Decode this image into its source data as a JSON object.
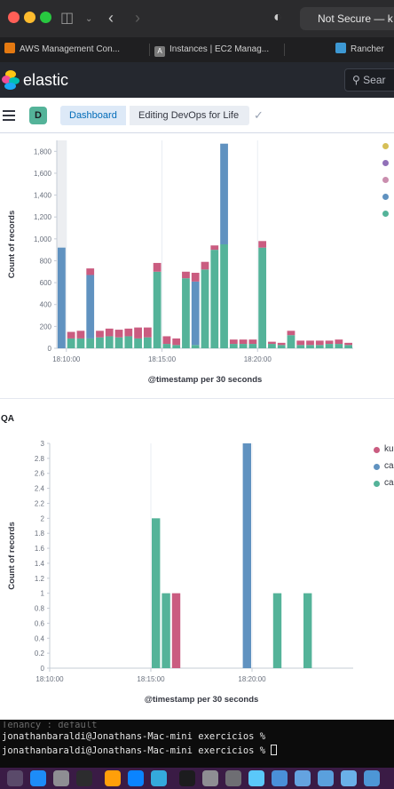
{
  "browser": {
    "url_text": "Not Secure — k",
    "tabs": [
      {
        "label": "AWS Management Con...",
        "icon": "aws-icon",
        "color": "#e47911"
      },
      {
        "label": "Instances | EC2 Manag...",
        "icon": "a-icon",
        "color": "#7a7a7a"
      },
      {
        "label": "Rancher",
        "icon": "rancher-icon",
        "color": "#3d98d3"
      }
    ]
  },
  "header": {
    "brand": "elastic",
    "search_placeholder": "Sear"
  },
  "breadcrumbs": {
    "space_initial": "D",
    "items": [
      "Dashboard",
      "Editing DevOps for Life"
    ]
  },
  "panels": [
    {
      "title": "",
      "chart_data": {
        "type": "bar",
        "stacked": true,
        "xlabel": "@timestamp per 30 seconds",
        "ylabel": "Count of records",
        "ylim": [
          0,
          1900
        ],
        "y_ticks": [
          "0",
          "200",
          "400",
          "600",
          "800",
          "1,000",
          "1,200",
          "1,400",
          "1,600",
          "1,800"
        ],
        "x_ticks": [
          "18:10:00",
          "18:15:00",
          "18:20:00"
        ],
        "legend_colors": [
          "#d6bf57",
          "#9170b8",
          "#ca8eae",
          "#6092c0",
          "#54b399"
        ],
        "series": [
          {
            "color": "#54b399",
            "values": [
              0,
              90,
              90,
              90,
              100,
              110,
              100,
              110,
              90,
              100,
              700,
              40,
              30,
              640,
              30,
              720,
              900,
              950,
              40,
              40,
              40,
              920,
              40,
              30,
              120,
              30,
              30,
              30,
              40,
              40,
              30
            ]
          },
          {
            "color": "#6092c0",
            "values": [
              920,
              0,
              0,
              580,
              0,
              0,
              0,
              0,
              0,
              0,
              0,
              0,
              0,
              0,
              580,
              0,
              0,
              920,
              0,
              0,
              0,
              0,
              0,
              0,
              0,
              0,
              0,
              0,
              0,
              0,
              0
            ]
          },
          {
            "color": "#ca5c80",
            "values": [
              0,
              60,
              70,
              60,
              60,
              70,
              70,
              70,
              100,
              90,
              80,
              70,
              60,
              60,
              80,
              70,
              40,
              0,
              40,
              40,
              40,
              60,
              20,
              20,
              40,
              40,
              40,
              40,
              30,
              40,
              20
            ]
          }
        ]
      }
    },
    {
      "title": "QA",
      "legend": [
        "ku",
        "ca",
        "ca"
      ],
      "chart_data": {
        "type": "bar",
        "stacked": false,
        "xlabel": "@timestamp per 30 seconds",
        "ylabel": "Count of records",
        "ylim": [
          0,
          3
        ],
        "y_ticks": [
          "0",
          "0.2",
          "0.4",
          "0.6",
          "0.8",
          "1",
          "1.2",
          "1.4",
          "1.6",
          "1.8",
          "2",
          "2.2",
          "2.4",
          "2.6",
          "2.8",
          "3"
        ],
        "x_ticks": [
          "18:10:00",
          "18:15:00",
          "18:20:00"
        ],
        "bars": [
          {
            "x_index": 10,
            "value": 2,
            "color": "#54b399"
          },
          {
            "x_index": 11,
            "value": 1,
            "color": "#54b399"
          },
          {
            "x_index": 12,
            "value": 1,
            "color": "#ca5c80"
          },
          {
            "x_index": 19,
            "value": 3,
            "color": "#6092c0"
          },
          {
            "x_index": 22,
            "value": 1,
            "color": "#54b399"
          },
          {
            "x_index": 25,
            "value": 1,
            "color": "#54b399"
          }
        ],
        "legend_colors": [
          "#ca5c80",
          "#6092c0",
          "#54b399"
        ]
      }
    }
  ],
  "terminal": {
    "faint_line": "Tenancy : default",
    "lines": [
      "jonathanbaraldi@Jonathans-Mac-mini exercicios %",
      "jonathanbaraldi@Jonathans-Mac-mini exercicios %"
    ]
  }
}
